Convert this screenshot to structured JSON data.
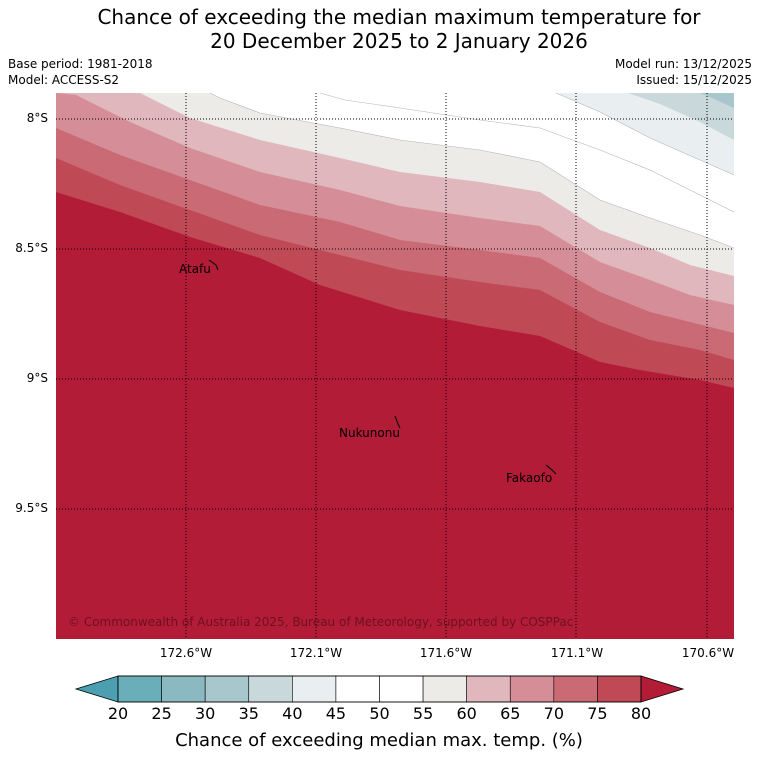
{
  "title": {
    "line1": "Chance of exceeding the median maximum temperature for",
    "line2": "20 December 2025 to 2 January 2026"
  },
  "meta": {
    "base_period": "Base period: 1981-2018",
    "model": "Model: ACCESS-S2",
    "model_run": "Model run: 13/12/2025",
    "issued": "Issued: 15/12/2025"
  },
  "map": {
    "lat_ticks": [
      "8°S",
      "8.5°S",
      "9°S",
      "9.5°S"
    ],
    "lon_ticks": [
      "172.6°W",
      "172.1°W",
      "171.6°W",
      "171.1°W",
      "170.6°W"
    ],
    "places": [
      {
        "name": "Atafu"
      },
      {
        "name": "Nukunonu"
      },
      {
        "name": "Fakaofo"
      }
    ],
    "copyright": "© Commonwealth of Australia 2025, Bureau of Meteorology, supported by COSPPac",
    "land_color": "#b31c36"
  },
  "colorbar": {
    "ticks": [
      "20",
      "25",
      "30",
      "35",
      "40",
      "45",
      "50",
      "55",
      "60",
      "65",
      "70",
      "75",
      "80"
    ],
    "under_color": "#4b9fb0",
    "over_color": "#b31c36",
    "colors": [
      "#6aaeba",
      "#8ab9c2",
      "#a8c7cc",
      "#c9d8db",
      "#e9eef0",
      "#ffffff",
      "#ffffff",
      "#ecebe8",
      "#e0b7bc",
      "#d58e97",
      "#c96a74",
      "#bf4a56"
    ],
    "label": "Chance of exceeding median max. temp. (%)"
  }
}
